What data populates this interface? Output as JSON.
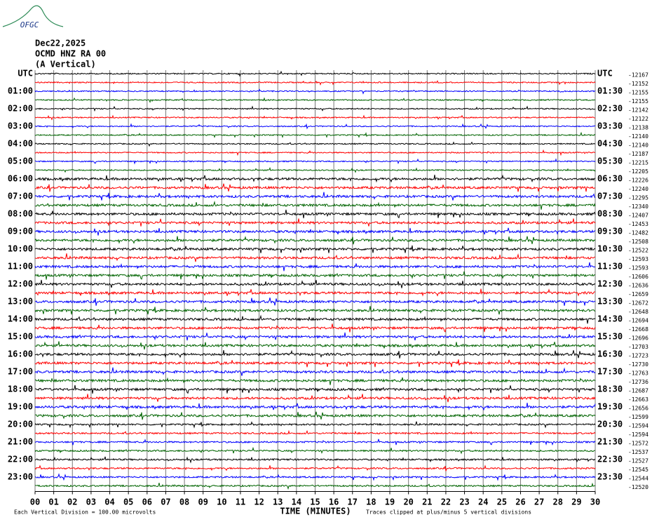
{
  "chart_data": {
    "type": "helicorder",
    "logo": "OFGC",
    "title": [
      "Dec22,2025",
      "OCMD HNZ RA 00",
      "(A Vertical)"
    ],
    "xlabel": "TIME (MINUTES)",
    "xlim": [
      0,
      30
    ],
    "xticks": [
      {
        "value": 0,
        "label": "00"
      },
      {
        "value": 1,
        "label": "01"
      },
      {
        "value": 2,
        "label": "02"
      },
      {
        "value": 3,
        "label": "03"
      },
      {
        "value": 4,
        "label": "04"
      },
      {
        "value": 5,
        "label": "05"
      },
      {
        "value": 6,
        "label": "06"
      },
      {
        "value": 7,
        "label": "07"
      },
      {
        "value": 8,
        "label": "08"
      },
      {
        "value": 9,
        "label": "09"
      },
      10,
      11,
      12,
      13,
      14,
      15,
      16,
      17,
      18,
      19,
      20,
      21,
      22,
      23,
      24,
      25,
      26,
      27,
      28,
      29,
      30
    ],
    "left_labels": [
      "UTC",
      "01:00",
      "02:00",
      "03:00",
      "04:00",
      "05:00",
      "06:00",
      "07:00",
      "08:00",
      "09:00",
      "10:00",
      "11:00",
      "12:00",
      "13:00",
      "14:00",
      "15:00",
      "16:00",
      "17:00",
      "18:00",
      "19:00",
      "20:00",
      "21:00",
      "22:00",
      "23:00"
    ],
    "right_labels": [
      "UTC",
      "01:30",
      "02:30",
      "03:30",
      "04:30",
      "05:30",
      "06:30",
      "07:30",
      "08:30",
      "09:30",
      "10:30",
      "11:30",
      "12:30",
      "13:30",
      "14:30",
      "15:30",
      "16:30",
      "17:30",
      "18:30",
      "19:30",
      "20:30",
      "21:30",
      "22:30",
      "23:30"
    ],
    "trace_offsets": [
      -12167,
      -12152,
      -12155,
      -12155,
      -12142,
      -12122,
      -12138,
      -12140,
      -12140,
      -12187,
      -12215,
      -12205,
      -12226,
      -12240,
      -12295,
      -12340,
      -12407,
      -12453,
      -12482,
      -12508,
      -12522,
      -12593,
      -12593,
      -12606,
      -12636,
      -12659,
      -12672,
      -12648,
      -12694,
      -12668,
      -12696,
      -12703,
      -12723,
      -12730,
      -12763,
      -12736,
      -12687,
      -12663,
      -12656,
      -12599,
      -12594,
      -12594,
      -12572,
      -12537,
      -12527,
      -12545,
      -12544,
      -12520
    ],
    "trace_colors": [
      "#000000",
      "#ff0000",
      "#0000ff",
      "#006400"
    ],
    "notes": [
      "Each Vertical Division =  100.00 microvolts",
      "Traces clipped at plus/minus 5 vertical divisions"
    ]
  }
}
